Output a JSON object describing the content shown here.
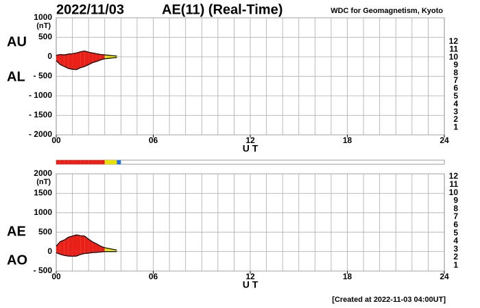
{
  "header": {
    "date": "2022/11/03",
    "title": "AE(11) (Real-Time)",
    "source": "WDC for Geomagnetism, Kyoto"
  },
  "footer": "[Created at 2022-11-03 04:00UT]",
  "legend": {
    "labels": [
      12,
      11,
      10,
      9,
      8,
      7,
      6,
      5,
      4,
      3,
      2,
      1
    ],
    "colors": [
      "#e8207a",
      "#e82018",
      "#f0a000",
      "#e8e000",
      "#a0e030",
      "#40d8d8",
      "#2070e0",
      "#2020a0",
      "#c020c0",
      "#303030",
      "#808080",
      "#c8c8c8"
    ]
  },
  "stations": {
    "values": [
      11,
      11,
      11,
      11,
      11,
      11,
      11,
      11,
      11,
      11,
      11,
      11,
      9,
      9,
      9,
      6
    ]
  },
  "chart_data": [
    {
      "type": "area",
      "xlabel": "U T",
      "ylabel": "(nT)",
      "x": [
        0,
        0.25,
        0.5,
        0.75,
        1,
        1.25,
        1.5,
        1.75,
        2,
        2.25,
        2.5,
        2.75,
        3,
        3.25,
        3.5,
        3.75
      ],
      "xlim": [
        0,
        24
      ],
      "xticks": [
        {
          "value": 0,
          "label": "00"
        },
        {
          "value": 6,
          "label": "06"
        },
        12,
        18,
        24
      ],
      "xgrid": [
        1,
        2,
        3,
        4,
        5,
        6,
        7,
        8,
        9,
        10,
        11,
        12,
        13,
        14,
        15,
        16,
        17,
        18,
        19,
        20,
        21,
        22,
        23
      ],
      "ylim": [
        -2000,
        1000
      ],
      "yticks": [
        1000,
        500,
        0,
        {
          "value": -500,
          "label": "- 500"
        },
        {
          "value": -1000,
          "label": "- 1000"
        },
        {
          "value": -1500,
          "label": "- 1500"
        },
        {
          "value": -2000,
          "label": "- 2000"
        }
      ],
      "series": [
        {
          "name": "AU",
          "values": [
            40,
            60,
            50,
            70,
            80,
            100,
            130,
            150,
            120,
            100,
            80,
            60,
            50,
            40,
            30,
            20
          ]
        },
        {
          "name": "AL",
          "values": [
            -100,
            -200,
            -250,
            -300,
            -320,
            -330,
            -280,
            -250,
            -200,
            -150,
            -120,
            -80,
            -50,
            -40,
            -30,
            -20
          ]
        }
      ]
    },
    {
      "type": "area",
      "xlabel": "U T",
      "ylabel": "(nT)",
      "x": [
        0,
        0.25,
        0.5,
        0.75,
        1,
        1.25,
        1.5,
        1.75,
        2,
        2.25,
        2.5,
        2.75,
        3,
        3.25,
        3.5,
        3.75
      ],
      "xlim": [
        0,
        24
      ],
      "xticks": [
        {
          "value": 0,
          "label": "00"
        },
        {
          "value": 6,
          "label": "06"
        },
        12,
        18,
        24
      ],
      "xgrid": [
        1,
        2,
        3,
        4,
        5,
        6,
        7,
        8,
        9,
        10,
        11,
        12,
        13,
        14,
        15,
        16,
        17,
        18,
        19,
        20,
        21,
        22,
        23
      ],
      "ylim": [
        -500,
        2000
      ],
      "yticks": [
        2000,
        1500,
        1000,
        500,
        0,
        {
          "value": -500,
          "label": "- 500"
        }
      ],
      "series": [
        {
          "name": "AE",
          "values": [
            140,
            260,
            300,
            370,
            400,
            430,
            410,
            400,
            320,
            250,
            200,
            140,
            100,
            80,
            60,
            40
          ]
        },
        {
          "name": "AO",
          "values": [
            -30,
            -70,
            -100,
            -115,
            -120,
            -115,
            -75,
            -50,
            -40,
            -25,
            -20,
            -10,
            0,
            0,
            0,
            0
          ]
        }
      ]
    }
  ]
}
